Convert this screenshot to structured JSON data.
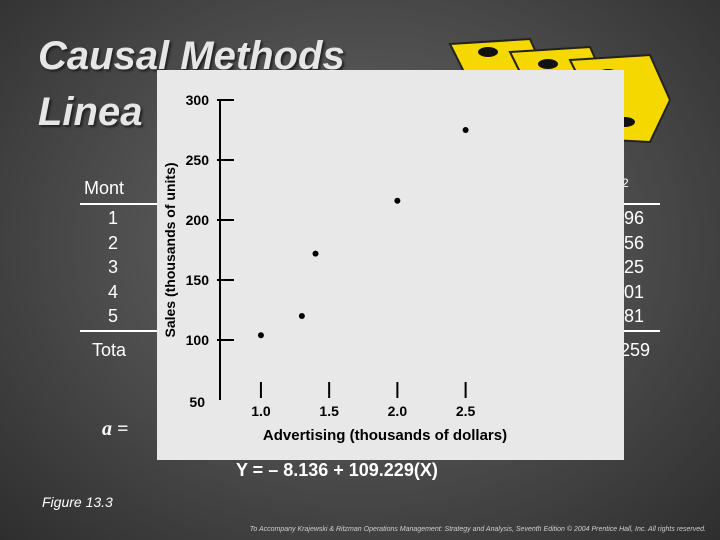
{
  "slide": {
    "title_line1": "Causal Methods",
    "title_line2": "Linea",
    "figure_label": "Figure 13.3",
    "footer": "To Accompany Krajewski & Ritzman Operations Management: Strategy and Analysis, Seventh Edition © 2004 Prentice Hall, Inc. All rights reserved.",
    "equation": "Y = – 8.136 + 109.229(X)",
    "formula_prefix": "a ="
  },
  "background_table": {
    "month_header": "Mont",
    "right_header": "2",
    "months": [
      "1",
      "2",
      "3",
      "4",
      "5"
    ],
    "total_label": "Tota",
    "right_values": [
      "96",
      "56",
      "25",
      "01",
      "81"
    ],
    "right_total": "259"
  },
  "icon": "chain-links-icon",
  "chart_data": {
    "type": "scatter",
    "title": "",
    "xlabel": "Advertising (thousands of dollars)",
    "ylabel": "Sales (thousands of units)",
    "xlim": [
      0.7,
      2.95
    ],
    "ylim": [
      50,
      300
    ],
    "xticks": [
      1.0,
      1.5,
      2.0,
      2.5
    ],
    "xtick_labels": [
      "1.0",
      "1.5",
      "2.0",
      "2.5"
    ],
    "yticks": [
      100,
      150,
      200,
      250,
      300
    ],
    "ytick_labels": [
      "100",
      "150",
      "200",
      "250",
      "300"
    ],
    "y_origin_label": "50",
    "grid": false,
    "points": [
      {
        "x": 1.0,
        "y": 104
      },
      {
        "x": 1.3,
        "y": 120
      },
      {
        "x": 1.4,
        "y": 172
      },
      {
        "x": 2.0,
        "y": 216
      },
      {
        "x": 2.5,
        "y": 275
      }
    ]
  }
}
